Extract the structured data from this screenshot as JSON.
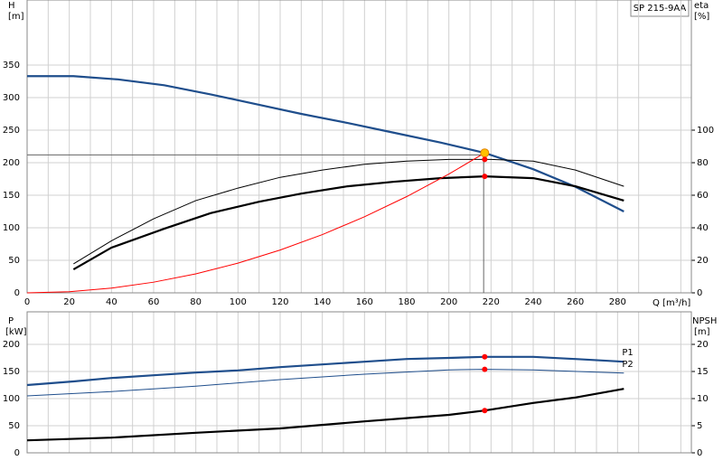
{
  "chart_data": [
    {
      "type": "line",
      "title": "SP 215-9AA",
      "y_label": "H",
      "y_unit": "[m]",
      "y2_label": "eta",
      "y2_unit": "[%]",
      "x_label": "Q [m³/h]",
      "xlim": [
        0,
        315
      ],
      "xticks": [
        0,
        20,
        40,
        60,
        80,
        100,
        120,
        140,
        160,
        180,
        200,
        220,
        240,
        260,
        280
      ],
      "ylim": [
        0,
        450
      ],
      "yticks": [
        0,
        50,
        100,
        150,
        200,
        250,
        300,
        350
      ],
      "y2lim": [
        0,
        180
      ],
      "y2ticks": [
        0,
        20,
        40,
        60,
        80,
        100
      ],
      "grid": true,
      "series": [
        {
          "color": "#1f4e8c",
          "thick": true,
          "x": [
            0,
            22,
            43,
            65,
            87,
            110,
            130,
            152,
            174,
            196,
            217,
            240,
            260,
            283
          ],
          "values": [
            333,
            333,
            328,
            319,
            305,
            289,
            275,
            261,
            246,
            231,
            215,
            190,
            163,
            125
          ]
        },
        {
          "color": "#000000",
          "thick": false,
          "axis": "y2",
          "x": [
            22,
            40,
            60,
            80,
            100,
            120,
            140,
            160,
            180,
            200,
            220,
            240,
            260,
            283
          ],
          "values": [
            17.8,
            32,
            45.5,
            56.7,
            64.4,
            71,
            75.5,
            79,
            81,
            82,
            82,
            81,
            75.5,
            65.5
          ]
        },
        {
          "color": "#000000",
          "thick": true,
          "axis": "y2",
          "x": [
            22,
            40,
            65,
            87,
            110,
            130,
            152,
            174,
            196,
            217,
            240,
            260,
            283
          ],
          "values": [
            14.4,
            27.8,
            39.4,
            49,
            56,
            61,
            65.5,
            68.3,
            70.5,
            71.6,
            70.5,
            65.5,
            56.7
          ]
        },
        {
          "color": "#ff0000",
          "thick": false,
          "x": [
            0,
            20,
            40,
            60,
            80,
            100,
            120,
            140,
            160,
            180,
            200,
            217
          ],
          "values": [
            0,
            1.8,
            7.3,
            16.4,
            29.2,
            45.7,
            65.8,
            89.5,
            116.9,
            147.9,
            182.6,
            215
          ]
        }
      ],
      "duty_point": {
        "x": 216.5,
        "y": 212
      },
      "markers": [
        {
          "x": 217,
          "y": 215,
          "color": "#ffc000"
        },
        {
          "x": 217,
          "y": 82,
          "color": "#ff0000",
          "axis": "y2"
        },
        {
          "x": 217,
          "y": 71.6,
          "color": "#ff0000",
          "axis": "y2"
        }
      ]
    },
    {
      "type": "line",
      "y_label": "P",
      "y_unit": "[kW]",
      "y2_label": "NPSH",
      "y2_unit": "[m]",
      "xlim": [
        0,
        315
      ],
      "xticks": [
        0,
        20,
        40,
        60,
        80,
        100,
        120,
        140,
        160,
        180,
        200,
        220,
        240,
        260,
        280
      ],
      "ylim": [
        0,
        260
      ],
      "yticks": [
        0,
        50,
        100,
        150,
        200
      ],
      "y2lim": [
        0,
        26
      ],
      "y2ticks": [
        0,
        5,
        10,
        15,
        20
      ],
      "grid": true,
      "series": [
        {
          "name": "P1",
          "color": "#1f4e8c",
          "thick": true,
          "x": [
            0,
            22,
            40,
            60,
            80,
            100,
            120,
            140,
            160,
            180,
            200,
            217,
            240,
            260,
            283
          ],
          "values": [
            125,
            131.7,
            138,
            143,
            148,
            152,
            158,
            163,
            168,
            173,
            175,
            177,
            177,
            173,
            168
          ]
        },
        {
          "name": "P2",
          "color": "#1f4e8c",
          "thick": false,
          "x": [
            0,
            40,
            80,
            120,
            160,
            200,
            217,
            240,
            283
          ],
          "values": [
            105,
            113,
            123,
            135,
            145,
            153,
            154,
            153,
            147
          ]
        },
        {
          "color": "#000000",
          "thick": true,
          "axis": "y2",
          "x": [
            0,
            40,
            80,
            120,
            160,
            200,
            217,
            240,
            260,
            283
          ],
          "values": [
            2.3,
            2.8,
            3.7,
            4.5,
            5.8,
            7,
            7.8,
            9.2,
            10.2,
            11.8
          ]
        }
      ],
      "markers": [
        {
          "x": 217,
          "y": 177,
          "color": "#ff0000"
        },
        {
          "x": 217,
          "y": 154,
          "color": "#ff0000"
        },
        {
          "x": 217,
          "y": 7.8,
          "color": "#ff0000",
          "axis": "y2"
        }
      ]
    }
  ]
}
